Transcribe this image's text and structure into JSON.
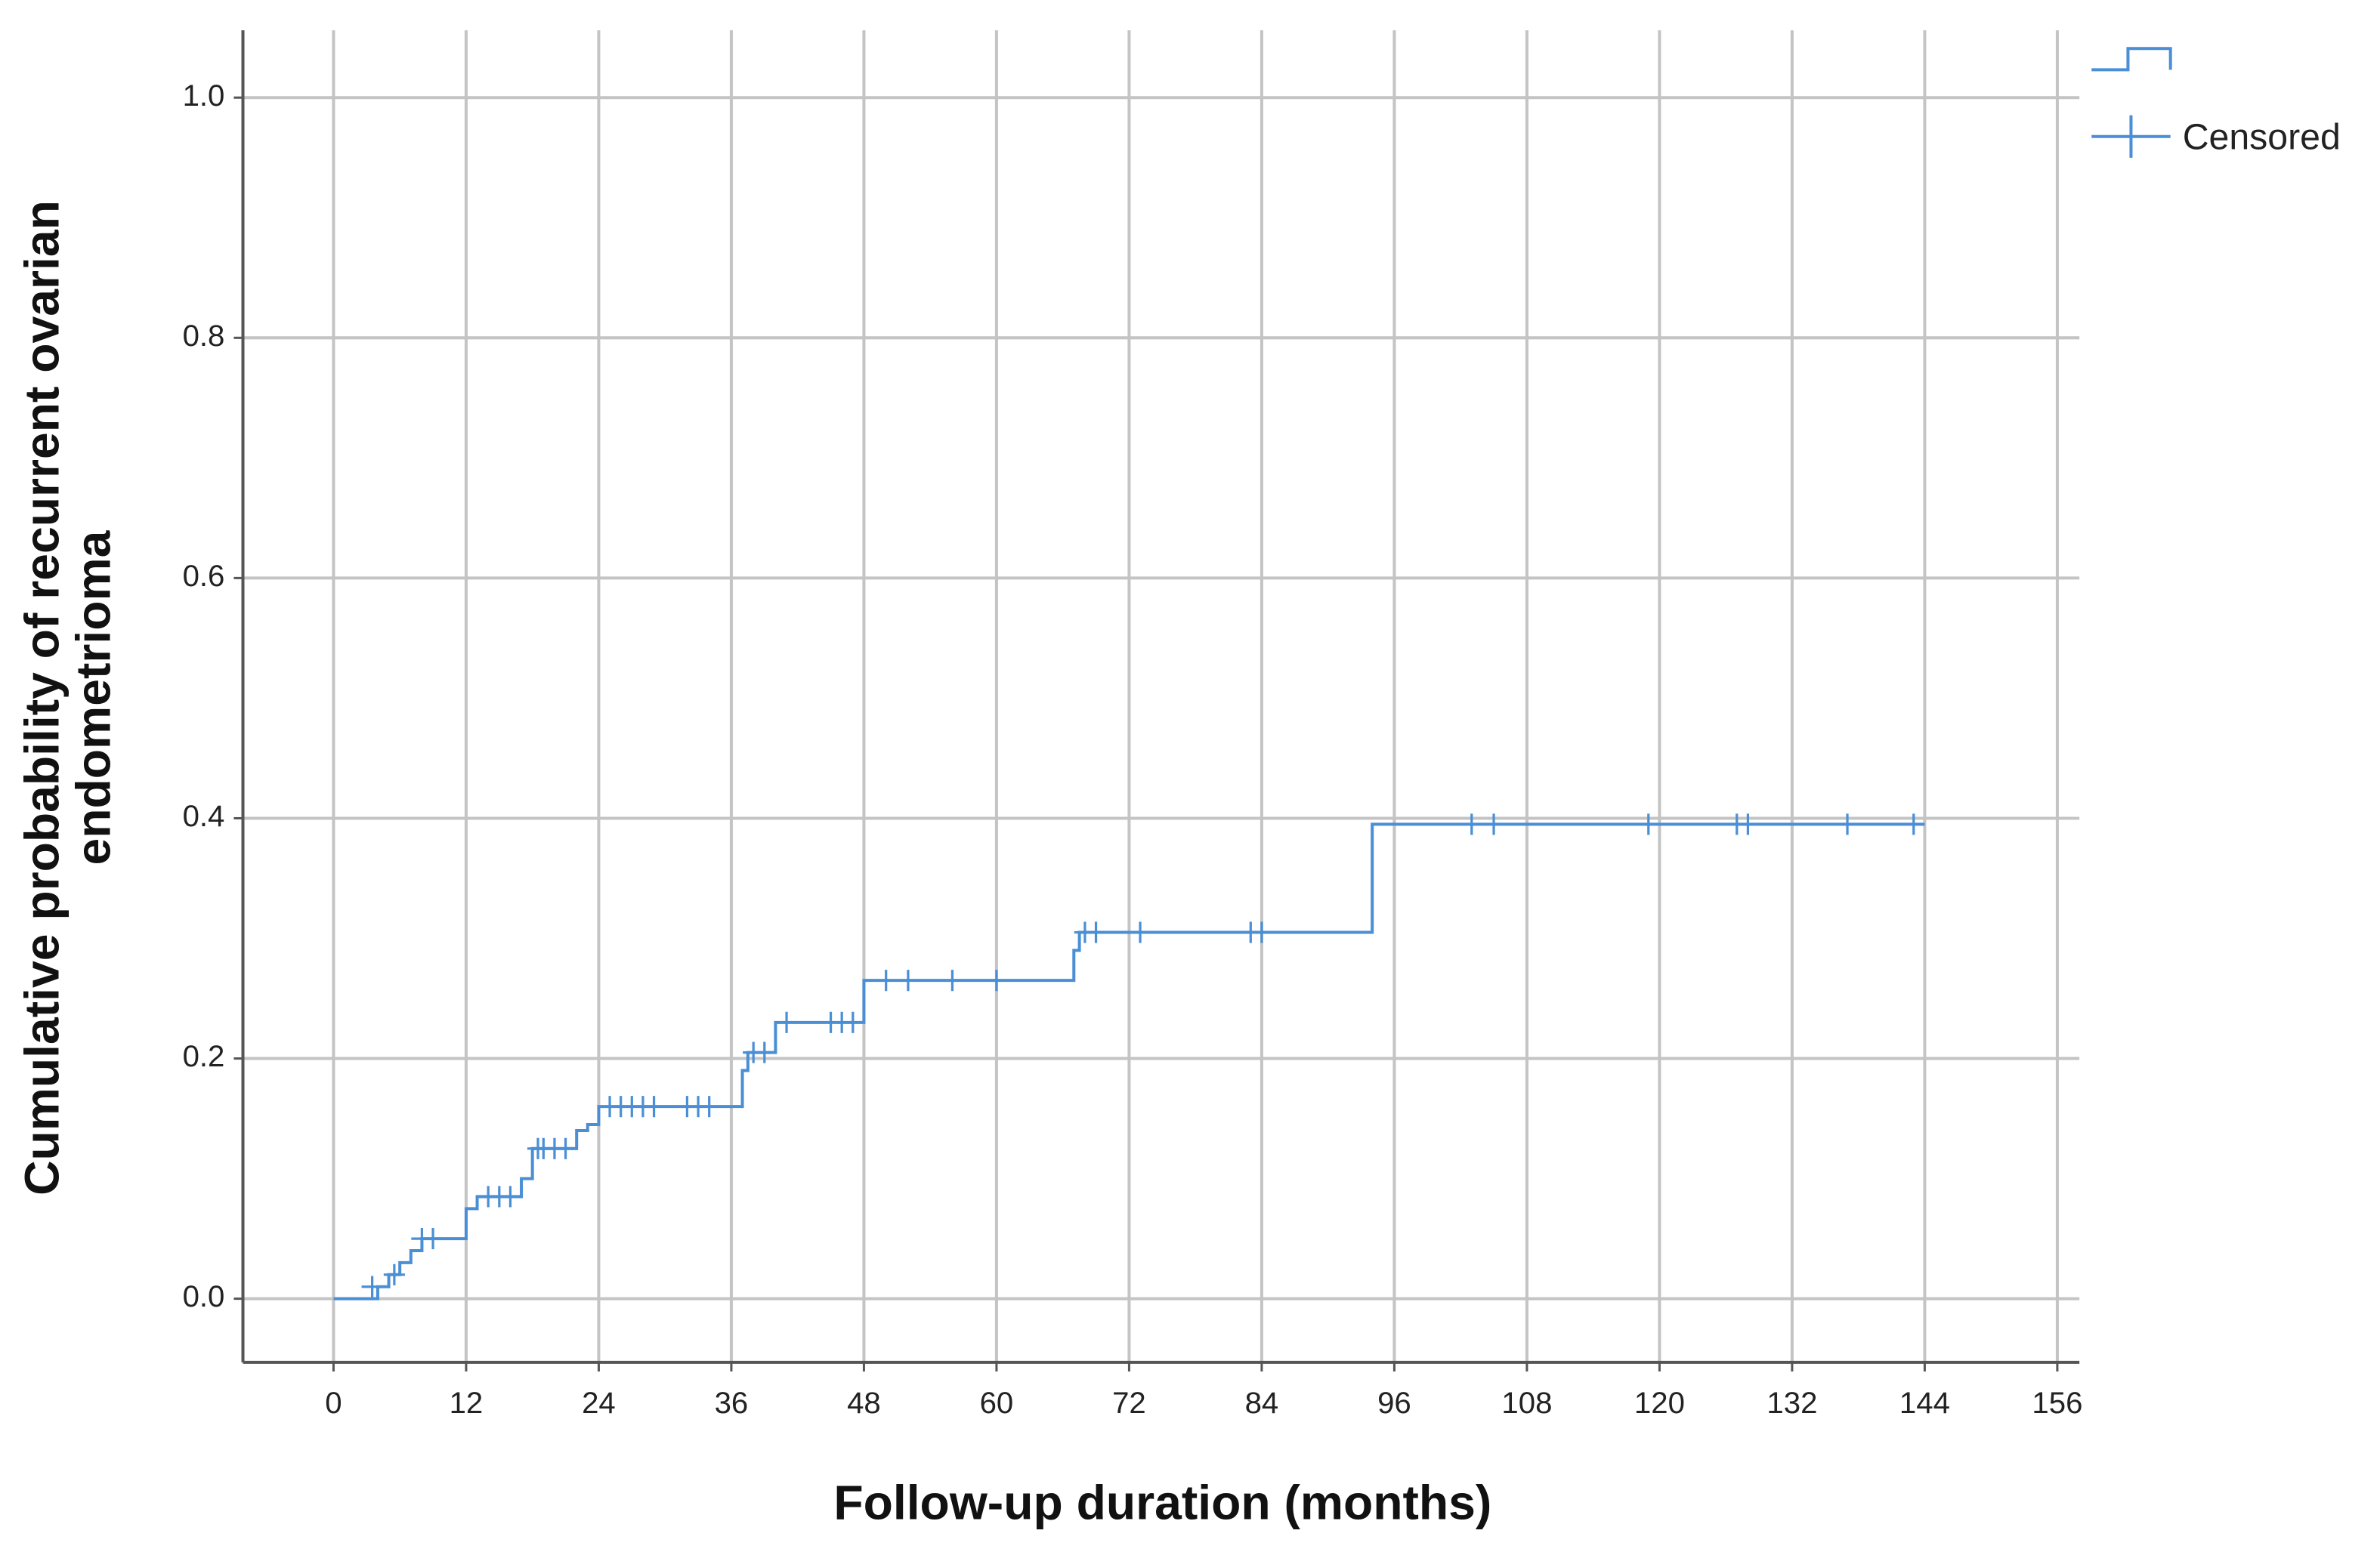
{
  "chart_data": {
    "type": "step",
    "x_label": "Follow-up duration (months)",
    "y_label": [
      "Cumulative probability of recurrent ovarian",
      "endometrioma"
    ],
    "xlim": [
      -8.2,
      158
    ],
    "ylim": [
      -0.053,
      1.056
    ],
    "xticks": [
      0,
      12,
      24,
      36,
      48,
      60,
      72,
      84,
      96,
      108,
      120,
      132,
      144,
      156
    ],
    "yticks": [
      {
        "value": 0,
        "label": "0.0"
      },
      {
        "value": 0.2,
        "label": "0.2"
      },
      {
        "value": 0.4,
        "label": "0.4"
      },
      {
        "value": 0.6,
        "label": "0.6"
      },
      {
        "value": 0.8,
        "label": "0.8"
      },
      {
        "value": 1,
        "label": "1.0"
      }
    ],
    "grid": true,
    "legend": "top-right",
    "series": [
      {
        "color": "#4a8fd6",
        "x": [
          0,
          4,
          5,
          6,
          7,
          8,
          12,
          13,
          17,
          18,
          22,
          23,
          24,
          37,
          37.5,
          40,
          48,
          67,
          67.5,
          94,
          144
        ],
        "values": [
          0,
          0.01,
          0.02,
          0.03,
          0.04,
          0.05,
          0.075,
          0.085,
          0.1,
          0.125,
          0.14,
          0.145,
          0.16,
          0.19,
          0.205,
          0.23,
          0.265,
          0.29,
          0.305,
          0.395,
          0.395
        ]
      },
      {
        "name": "Censored",
        "color": "#4a8fd6",
        "marker": "+",
        "x": [
          3.5,
          5.5,
          8,
          9,
          14,
          15,
          16,
          18.5,
          19,
          20,
          21,
          25,
          26,
          27,
          28,
          29,
          32,
          33,
          34,
          38,
          39,
          41,
          45,
          46,
          47,
          50,
          52,
          56,
          60,
          68,
          69,
          73,
          83,
          84,
          103,
          105,
          119,
          127,
          128,
          137,
          143
        ],
        "values": [
          0.01,
          0.02,
          0.05,
          0.05,
          0.085,
          0.085,
          0.085,
          0.125,
          0.125,
          0.125,
          0.125,
          0.16,
          0.16,
          0.16,
          0.16,
          0.16,
          0.16,
          0.16,
          0.16,
          0.205,
          0.205,
          0.23,
          0.23,
          0.23,
          0.23,
          0.265,
          0.265,
          0.265,
          0.265,
          0.305,
          0.305,
          0.305,
          0.305,
          0.305,
          0.395,
          0.395,
          0.395,
          0.395,
          0.395,
          0.395,
          0.395
        ]
      }
    ]
  }
}
